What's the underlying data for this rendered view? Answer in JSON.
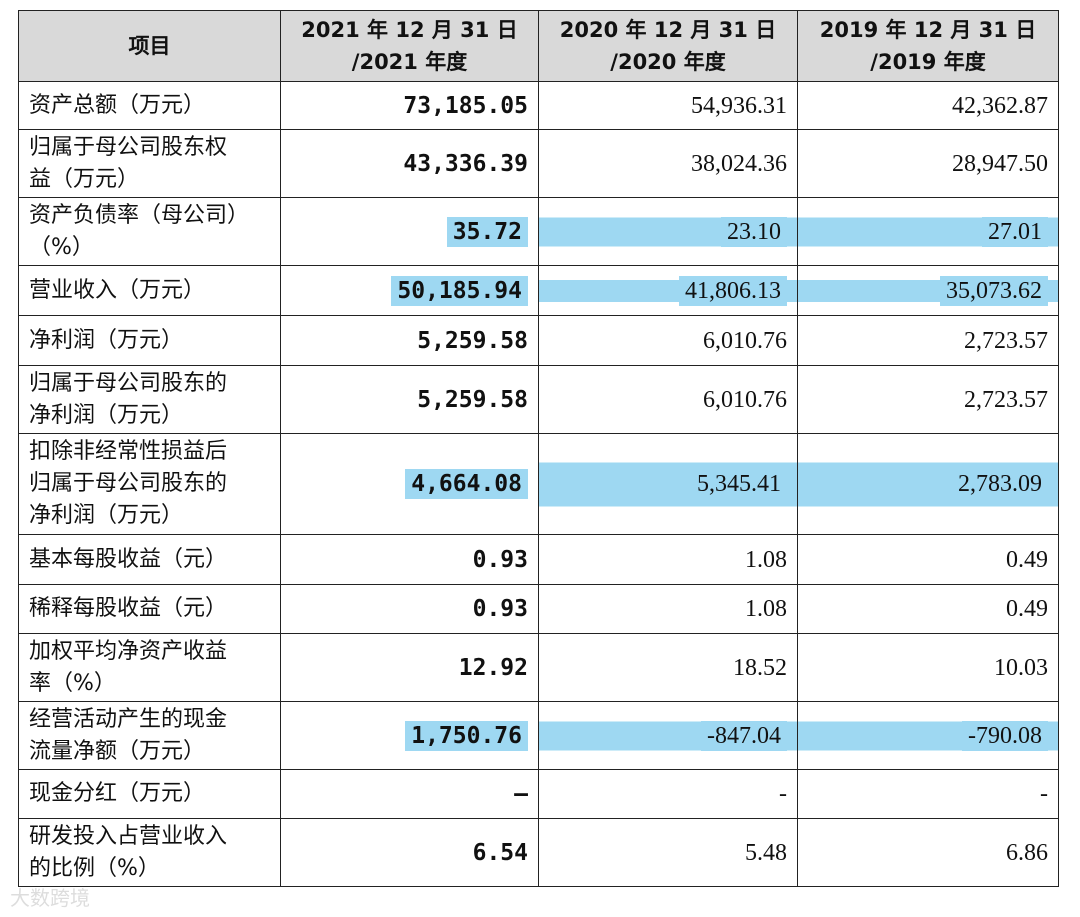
{
  "table": {
    "header": [
      "项目",
      "2021 年 12 月 31 日\n/2021 年度",
      "2020 年 12 月 31 日\n/2020 年度",
      "2019 年 12 月 31 日\n/2019 年度"
    ],
    "rows": [
      [
        "资产总额（万元）",
        "73,185.05",
        "54,936.31",
        "42,362.87"
      ],
      [
        "归属于母公司股东权\n益（万元）",
        "43,336.39",
        "38,024.36",
        "28,947.50"
      ],
      [
        "资产负债率（母公司）\n（%）",
        "35.72",
        "23.10",
        "27.01"
      ],
      [
        "营业收入（万元）",
        "50,185.94",
        "41,806.13",
        "35,073.62"
      ],
      [
        "净利润（万元）",
        "5,259.58",
        "6,010.76",
        "2,723.57"
      ],
      [
        "归属于母公司股东的\n净利润（万元）",
        "5,259.58",
        "6,010.76",
        "2,723.57"
      ],
      [
        "扣除非经常性损益后\n归属于母公司股东的\n净利润（万元）",
        "4,664.08",
        "5,345.41",
        "2,783.09"
      ],
      [
        "基本每股收益（元）",
        "0.93",
        "1.08",
        "0.49"
      ],
      [
        "稀释每股收益（元）",
        "0.93",
        "1.08",
        "0.49"
      ],
      [
        "加权平均净资产收益\n率（%）",
        "12.92",
        "18.52",
        "10.03"
      ],
      [
        "经营活动产生的现金\n流量净额（万元）",
        "1,750.76",
        "-847.04",
        "-790.08"
      ],
      [
        "现金分红（万元）",
        "–",
        "-",
        "-"
      ],
      [
        "研发投入占营业收入\n的比例（%）",
        "6.54",
        "5.48",
        "6.86"
      ]
    ]
  },
  "watermark": "大数跨境"
}
